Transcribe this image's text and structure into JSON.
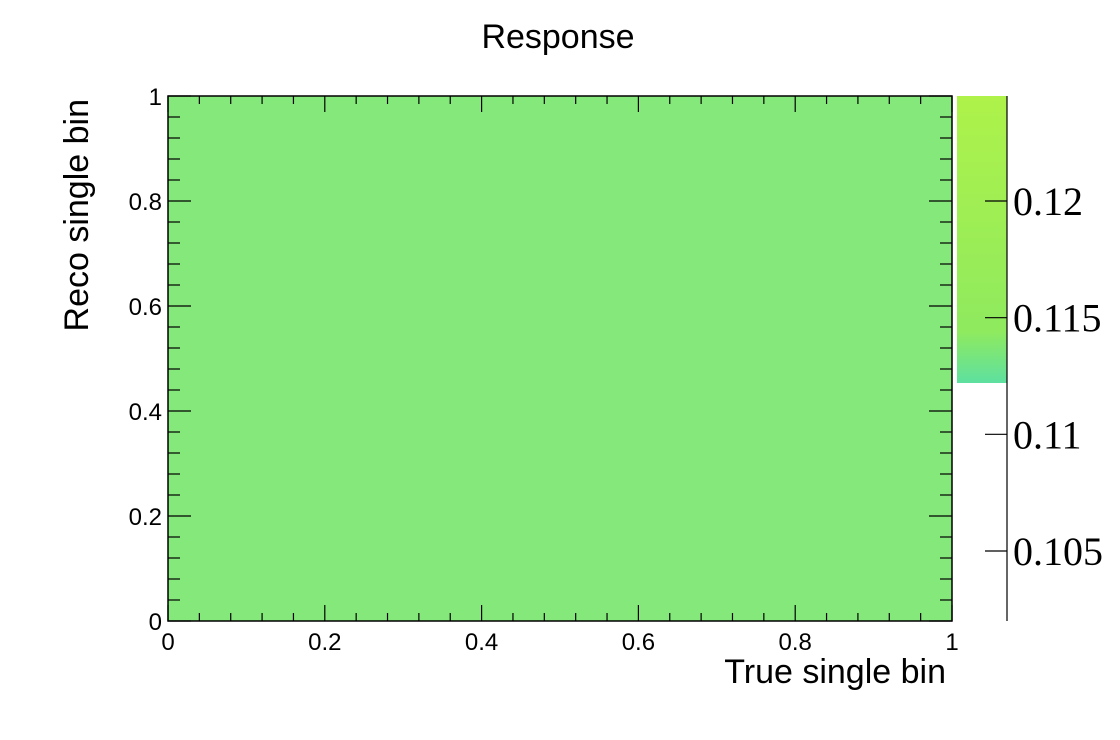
{
  "chart_data": {
    "type": "heatmap",
    "title": "Response",
    "xlabel": "True single bin",
    "ylabel": "Reco single bin",
    "xlim": [
      0,
      1
    ],
    "ylim": [
      0,
      1
    ],
    "x_ticks": [
      "0",
      "0.2",
      "0.4",
      "0.6",
      "0.8",
      "1"
    ],
    "y_ticks": [
      "0",
      "0.2",
      "0.4",
      "0.6",
      "0.8",
      "1"
    ],
    "cells": [
      {
        "x_range": [
          0,
          1
        ],
        "y_range": [
          0,
          1
        ],
        "value": 0.1165
      }
    ],
    "colorbar": {
      "range": [
        0.102,
        0.1245
      ],
      "ticks": [
        "0.105",
        "0.11",
        "0.115",
        "0.12"
      ],
      "fill_range": [
        0.1122,
        0.1245
      ]
    },
    "colors": {
      "cell": "#84e87a",
      "palette_low": "#5ee0a0",
      "palette_mid": "#8fea5e",
      "palette_high": "#aef24a"
    },
    "grid": false,
    "legend": "none"
  }
}
